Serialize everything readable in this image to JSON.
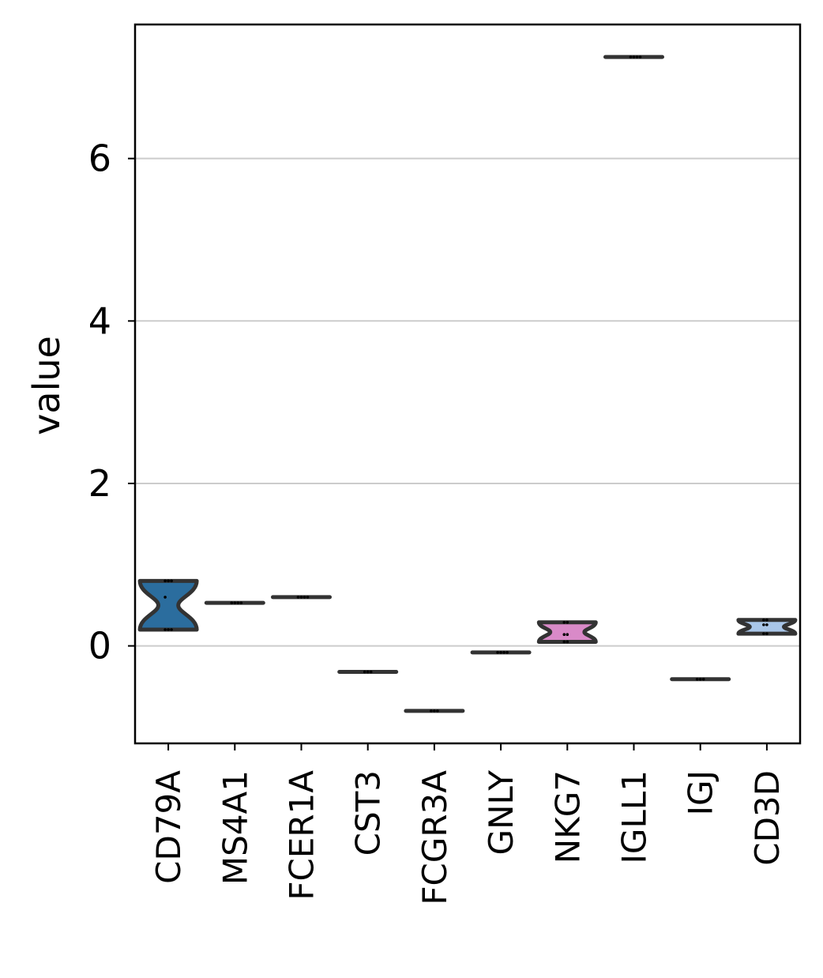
{
  "chart_data": {
    "type": "violin",
    "title": "",
    "xlabel": "",
    "ylabel": "value",
    "ylim": [
      -1.2,
      7.65
    ],
    "yticks": [
      0,
      2,
      4,
      6
    ],
    "grid": "horizontal",
    "categories": [
      "CD79A",
      "MS4A1",
      "FCER1A",
      "CST3",
      "FCGR3A",
      "GNLY",
      "NKG7",
      "IGLL1",
      "IGJ",
      "CD3D"
    ],
    "colors": [
      "#2b6d9e",
      "#2f6e9f",
      "#6a8fb8",
      "#7b8fa8",
      "#3a5580",
      "#5a7090",
      "#d98ac8",
      "#404040",
      "#6a6a6a",
      "#a9c6e8"
    ],
    "violins": [
      {
        "category": "CD79A",
        "min": 0.2,
        "max": 0.8,
        "points": [
          0.2,
          0.2,
          0.2,
          0.6,
          0.8,
          0.8,
          0.8
        ]
      },
      {
        "category": "MS4A1",
        "min": 0.53,
        "max": 0.53,
        "points": [
          0.53,
          0.53,
          0.53,
          0.53
        ]
      },
      {
        "category": "FCER1A",
        "min": 0.6,
        "max": 0.6,
        "points": [
          0.6,
          0.6,
          0.6,
          0.6
        ]
      },
      {
        "category": "CST3",
        "min": -0.32,
        "max": -0.32,
        "points": [
          -0.32,
          -0.32,
          -0.32
        ]
      },
      {
        "category": "FCGR3A",
        "min": -0.8,
        "max": -0.8,
        "points": [
          -0.8,
          -0.8,
          -0.8
        ]
      },
      {
        "category": "GNLY",
        "min": -0.08,
        "max": -0.08,
        "points": [
          -0.08,
          -0.08,
          -0.08,
          -0.08
        ]
      },
      {
        "category": "NKG7",
        "min": 0.05,
        "max": 0.29,
        "points": [
          0.05,
          0.05,
          0.14,
          0.14,
          0.29,
          0.29
        ]
      },
      {
        "category": "IGLL1",
        "min": 7.25,
        "max": 7.25,
        "points": [
          7.25,
          7.25,
          7.25,
          7.25
        ]
      },
      {
        "category": "IGJ",
        "min": -0.41,
        "max": -0.41,
        "points": [
          -0.41,
          -0.41,
          -0.41
        ]
      },
      {
        "category": "CD3D",
        "min": 0.15,
        "max": 0.32,
        "points": [
          0.15,
          0.15,
          0.26,
          0.26,
          0.32,
          0.32
        ]
      }
    ]
  }
}
